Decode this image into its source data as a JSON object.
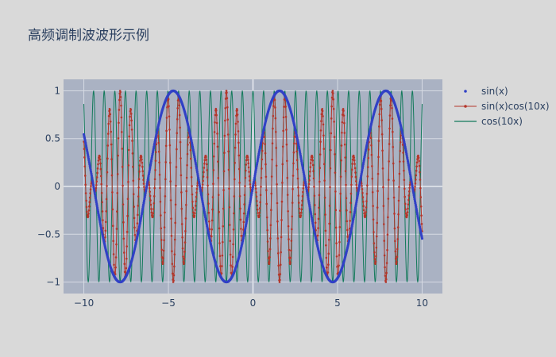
{
  "chart_data": {
    "type": "line",
    "title": "高频调制波波形示例",
    "xlabel": "",
    "ylabel": "",
    "xlim": [
      -11.2,
      11.2
    ],
    "ylim": [
      -1.12,
      1.12
    ],
    "x_ticks": [
      -10,
      -5,
      0,
      5,
      10
    ],
    "x_tick_labels": [
      "−10",
      "−5",
      "0",
      "5",
      "10"
    ],
    "y_ticks": [
      -1,
      -0.5,
      0,
      0.5,
      1
    ],
    "y_tick_labels": [
      "−1",
      "−0.5",
      "0",
      "0.5",
      "1"
    ],
    "grid": true,
    "legend_position": "right",
    "x_range": [
      -10,
      10
    ],
    "series": [
      {
        "name": "sin(x)",
        "formula": "sin(x)",
        "mode": "markers",
        "color": "#3141c6",
        "samples": 1000
      },
      {
        "name": "sin(x)cos(10x)",
        "formula": "sin(x)*cos(10*x)",
        "mode": "lines+markers",
        "color": "#b5362b",
        "samples": 1000
      },
      {
        "name": "cos(10x)",
        "formula": "cos(10*x)",
        "mode": "lines",
        "color": "#137a5b",
        "samples": 1000
      }
    ]
  }
}
